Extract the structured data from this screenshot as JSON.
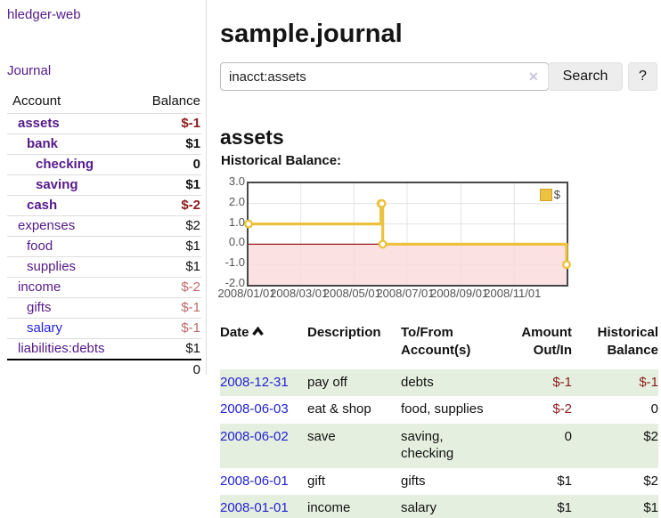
{
  "sidebar": {
    "app_title": "hledger-web",
    "journal_link": "Journal",
    "table": {
      "account_header": "Account",
      "balance_header": "Balance",
      "accounts": [
        {
          "name": "assets",
          "balance": "$-1"
        },
        {
          "name": "bank",
          "balance": "$1"
        },
        {
          "name": "checking",
          "balance": "0"
        },
        {
          "name": "saving",
          "balance": "$1"
        },
        {
          "name": "cash",
          "balance": "$-2"
        },
        {
          "name": "expenses",
          "balance": "$2"
        },
        {
          "name": "food",
          "balance": "$1"
        },
        {
          "name": "supplies",
          "balance": "$1"
        },
        {
          "name": "income",
          "balance": "$-2"
        },
        {
          "name": "gifts",
          "balance": "$-1"
        },
        {
          "name": "salary",
          "balance": "$-1"
        },
        {
          "name": "liabilities:debts",
          "balance": "$1"
        }
      ],
      "total": "0"
    }
  },
  "main": {
    "title": "sample.journal",
    "search": {
      "value": "inacct:assets",
      "clear_icon": "✕",
      "search_button": "Search",
      "help_button": "?"
    },
    "account_heading": "assets",
    "chart_title": "Historical Balance:",
    "register": {
      "headers": {
        "date": "Date",
        "description": "Description",
        "account": "To/From Account(s)",
        "amount": "Amount Out/In",
        "balance": "Historical Balance"
      },
      "rows": [
        {
          "date": "2008-12-31",
          "description": "pay off",
          "account": "debts",
          "amount": "$-1",
          "balance": "$-1"
        },
        {
          "date": "2008-06-03",
          "description": "eat & shop",
          "account": "food, supplies",
          "amount": "$-2",
          "balance": "0"
        },
        {
          "date": "2008-06-02",
          "description": "save",
          "account": "saving, checking",
          "amount": "0",
          "balance": "$2"
        },
        {
          "date": "2008-06-01",
          "description": "gift",
          "account": "gifts",
          "amount": "$1",
          "balance": "$2"
        },
        {
          "date": "2008-01-01",
          "description": "income",
          "account": "salary",
          "amount": "$1",
          "balance": "$1"
        }
      ]
    }
  },
  "chart_data": {
    "type": "line",
    "title": "Historical Balance:",
    "style": "steps",
    "series": [
      {
        "name": "$",
        "color": "#edc240",
        "points": [
          [
            "2008-01-01",
            1
          ],
          [
            "2008-06-01",
            2
          ],
          [
            "2008-06-02",
            2
          ],
          [
            "2008-06-03",
            0
          ],
          [
            "2008-12-31",
            -1
          ]
        ]
      }
    ],
    "xlim": [
      "2008-01-01",
      "2008-12-31"
    ],
    "ylim": [
      -2,
      3
    ],
    "yticks": [
      3.0,
      2.0,
      1.0,
      0.0,
      -1.0,
      -2.0
    ],
    "xticks": [
      "2008/01/01",
      "2008/03/01",
      "2008/05/01",
      "2008/07/01",
      "2008/09/01",
      "2008/11/01"
    ],
    "legend_label": "$",
    "legend_position": "top-right",
    "grid": true,
    "negative_region_color": "#fadada",
    "zero_line_color": "#9b1c1c"
  },
  "colors": {
    "link_purple": "#551a8b",
    "link_blue": "#2222dd",
    "negative_bold": "#8b1a1a",
    "negative_light": "#c06a6a",
    "row_green": "#e5efdf",
    "chart_line": "#edc240",
    "chart_border": "#474747"
  }
}
